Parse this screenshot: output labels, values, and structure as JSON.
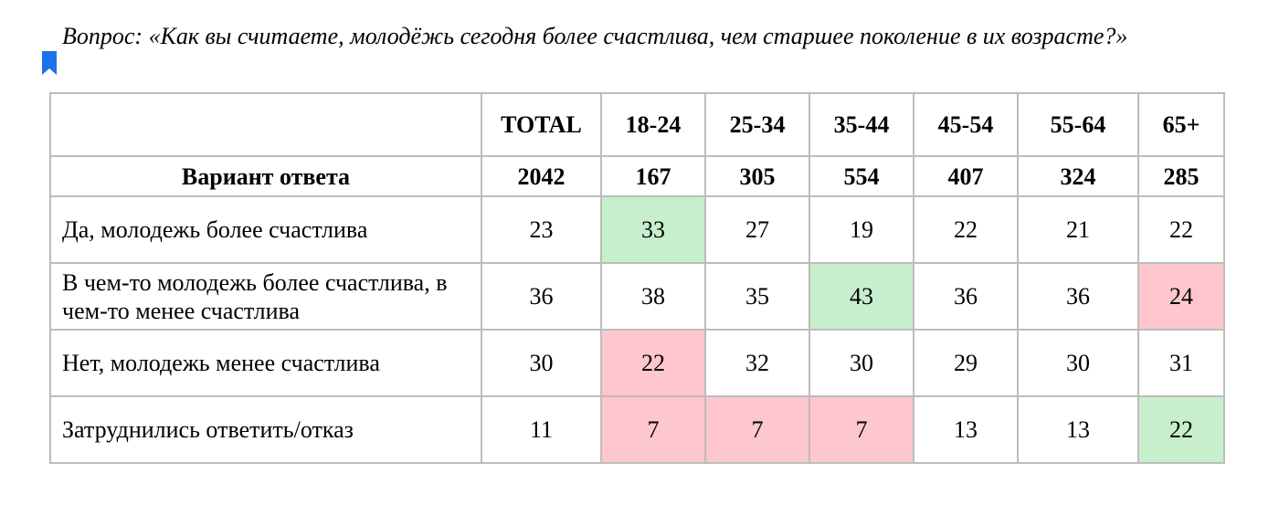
{
  "question": {
    "text": "Вопрос: «Как вы считаете, молодёжь сегодня более счастлива, чем старшее поколение в их возрасте?»"
  },
  "colors": {
    "highlight_high": "#c8efcd",
    "highlight_low": "#fdc7cd",
    "border": "#bcbcbc",
    "bookmark": "#1a73e8"
  },
  "icons": {
    "bookmark": "bookmark-icon"
  },
  "table": {
    "header_groups": [
      "TOTAL",
      "18-24",
      "25-34",
      "35-44",
      "45-54",
      "55-64",
      "65+"
    ],
    "answer_header": "Вариант ответа",
    "sample_sizes": [
      "2042",
      "167",
      "305",
      "554",
      "407",
      "324",
      "285"
    ],
    "rows": [
      {
        "label": "Да, молодежь более счастлива",
        "values": [
          "23",
          "33",
          "27",
          "19",
          "22",
          "21",
          "22"
        ],
        "highlight": [
          "",
          "green",
          "",
          "",
          "",
          "",
          ""
        ]
      },
      {
        "label": "В чем-то молодежь более счастлива, в чем-то менее счастлива",
        "values": [
          "36",
          "38",
          "35",
          "43",
          "36",
          "36",
          "24"
        ],
        "highlight": [
          "",
          "",
          "",
          "green",
          "",
          "",
          "red"
        ]
      },
      {
        "label": "Нет, молодежь менее счастлива",
        "values": [
          "30",
          "22",
          "32",
          "30",
          "29",
          "30",
          "31"
        ],
        "highlight": [
          "",
          "red",
          "",
          "",
          "",
          "",
          ""
        ]
      },
      {
        "label": "Затруднились ответить/отказ",
        "values": [
          "11",
          "7",
          "7",
          "7",
          "13",
          "13",
          "22"
        ],
        "highlight": [
          "",
          "red",
          "red",
          "red",
          "",
          "",
          "green"
        ]
      }
    ]
  }
}
